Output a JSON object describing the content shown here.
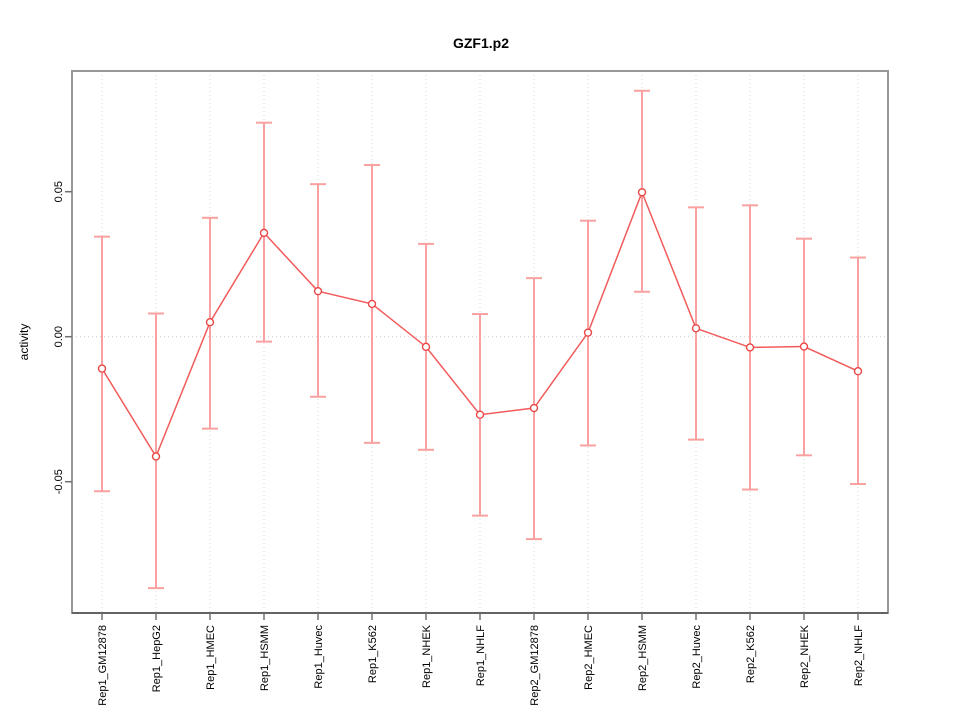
{
  "chart_data": {
    "type": "line",
    "title": "GZF1.p2",
    "xlabel": "",
    "ylabel": "activity",
    "legend": "none",
    "grid": "vertical dotted gridline at each category; horizontal dotted line at y=0",
    "ylim": [
      -0.095,
      0.092
    ],
    "yticks": [
      {
        "value": 0.05,
        "label": "0.05"
      },
      {
        "value": 0.0,
        "label": "0.00"
      },
      {
        "value": -0.05,
        "label": "-0.05"
      }
    ],
    "categories": [
      "Rep1_GM12878",
      "Rep1_HepG2",
      "Rep1_HMEC",
      "Rep1_HSMM",
      "Rep1_Huvec",
      "Rep1_K562",
      "Rep1_NHEK",
      "Rep1_NHLF",
      "Rep2_GM12878",
      "Rep2_HMEC",
      "Rep2_HSMM",
      "Rep2_Huvec",
      "Rep2_K562",
      "Rep2_NHEK",
      "Rep2_NHLF"
    ],
    "series": [
      {
        "name": "activity",
        "values": [
          -0.011,
          -0.0413,
          0.005,
          0.0358,
          0.0157,
          0.0113,
          -0.0035,
          -0.0269,
          -0.0246,
          0.0014,
          0.0498,
          0.0029,
          -0.0037,
          -0.0034,
          -0.0119
        ],
        "error_high": [
          0.0345,
          0.008,
          0.041,
          0.0738,
          0.0526,
          0.0592,
          0.032,
          0.0078,
          0.0202,
          0.04,
          0.0848,
          0.0446,
          0.0453,
          0.0338,
          0.0273
        ],
        "error_low": [
          -0.0533,
          -0.0867,
          -0.0317,
          -0.0017,
          -0.0207,
          -0.0366,
          -0.039,
          -0.0617,
          -0.0698,
          -0.0375,
          0.0155,
          -0.0355,
          -0.0527,
          -0.0409,
          -0.0508
        ]
      }
    ],
    "colors": {
      "error_bar": "#F9A0A0",
      "trend_line": "#F25B5B",
      "marker_stroke": "#EA4747",
      "marker_fill": "#FFFFFF",
      "gridline": "#D9D9D9",
      "zero_line": "#CCCCCC",
      "frame": "#989898",
      "axis_line": "#444444",
      "tick": "#707070",
      "text": "#000000"
    }
  }
}
